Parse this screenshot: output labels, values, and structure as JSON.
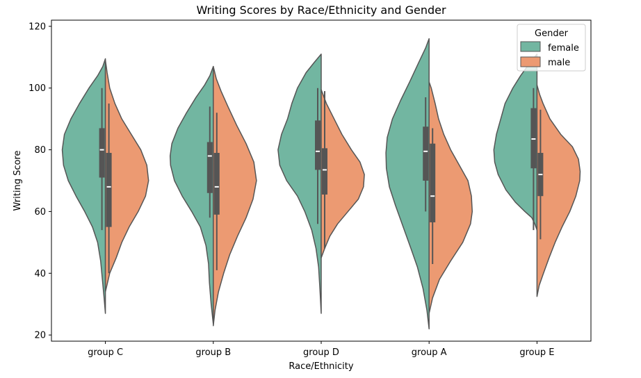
{
  "chart_data": {
    "type": "violin",
    "title": "Writing Scores by Race/Ethnicity and Gender",
    "xlabel": "Race/Ethnicity",
    "ylabel": "Writing Score",
    "ylim": [
      18,
      122
    ],
    "yticks": [
      20,
      40,
      60,
      80,
      100,
      120
    ],
    "categories": [
      "group C",
      "group B",
      "group D",
      "group A",
      "group E"
    ],
    "grid": false,
    "legend": {
      "title": "Gender",
      "placement": "top-right"
    },
    "series": [
      {
        "name": "female",
        "color": "#72b6a1",
        "groups": [
          {
            "range": [
              27,
              109.5
            ],
            "q1": 71,
            "median": 80,
            "q3": 87,
            "whisker_low": 54,
            "whisker_high": 100,
            "profile": [
              [
                27,
                0
              ],
              [
                32,
                0.03
              ],
              [
                38,
                0.07
              ],
              [
                44,
                0.11
              ],
              [
                50,
                0.18
              ],
              [
                55,
                0.3
              ],
              [
                60,
                0.48
              ],
              [
                65,
                0.68
              ],
              [
                70,
                0.86
              ],
              [
                75,
                0.97
              ],
              [
                80,
                1.0
              ],
              [
                85,
                0.95
              ],
              [
                90,
                0.8
              ],
              [
                95,
                0.6
              ],
              [
                100,
                0.38
              ],
              [
                104,
                0.18
              ],
              [
                107,
                0.06
              ],
              [
                109.5,
                0
              ]
            ]
          },
          {
            "range": [
              23.5,
              107
            ],
            "q1": 66,
            "median": 78,
            "q3": 82.5,
            "whisker_low": 58,
            "whisker_high": 94,
            "profile": [
              [
                23.5,
                0
              ],
              [
                30,
                0.05
              ],
              [
                37,
                0.09
              ],
              [
                43,
                0.11
              ],
              [
                49,
                0.17
              ],
              [
                55,
                0.3
              ],
              [
                60,
                0.5
              ],
              [
                65,
                0.72
              ],
              [
                70,
                0.9
              ],
              [
                75,
                0.99
              ],
              [
                78,
                1.0
              ],
              [
                82,
                0.96
              ],
              [
                87,
                0.82
              ],
              [
                92,
                0.62
              ],
              [
                97,
                0.4
              ],
              [
                101,
                0.2
              ],
              [
                104,
                0.08
              ],
              [
                107,
                0
              ]
            ]
          },
          {
            "range": [
              27,
              111
            ],
            "q1": 73.5,
            "median": 79.5,
            "q3": 89.5,
            "whisker_low": 56,
            "whisker_high": 100,
            "profile": [
              [
                27,
                0
              ],
              [
                35,
                0.03
              ],
              [
                42,
                0.06
              ],
              [
                48,
                0.12
              ],
              [
                54,
                0.22
              ],
              [
                60,
                0.38
              ],
              [
                65,
                0.55
              ],
              [
                70,
                0.8
              ],
              [
                75,
                0.96
              ],
              [
                80,
                1.0
              ],
              [
                85,
                0.92
              ],
              [
                90,
                0.78
              ],
              [
                95,
                0.68
              ],
              [
                100,
                0.55
              ],
              [
                105,
                0.35
              ],
              [
                108.5,
                0.15
              ],
              [
                111,
                0
              ]
            ]
          },
          {
            "range": [
              22,
              116
            ],
            "q1": 70,
            "median": 79.5,
            "q3": 87.5,
            "whisker_low": 60,
            "whisker_high": 97,
            "profile": [
              [
                22,
                0
              ],
              [
                28,
                0.05
              ],
              [
                35,
                0.14
              ],
              [
                42,
                0.27
              ],
              [
                48,
                0.42
              ],
              [
                55,
                0.6
              ],
              [
                62,
                0.78
              ],
              [
                68,
                0.92
              ],
              [
                74,
                0.99
              ],
              [
                79,
                1.0
              ],
              [
                84,
                0.97
              ],
              [
                90,
                0.85
              ],
              [
                96,
                0.66
              ],
              [
                102,
                0.45
              ],
              [
                108,
                0.25
              ],
              [
                113,
                0.08
              ],
              [
                116,
                0
              ]
            ]
          },
          {
            "range": [
              54,
              111
            ],
            "q1": 74,
            "median": 83.5,
            "q3": 93.5,
            "whisker_low": 54,
            "whisker_high": 100,
            "profile": [
              [
                54,
                0
              ],
              [
                56,
                0.05
              ],
              [
                58,
                0.12
              ],
              [
                60,
                0.28
              ],
              [
                63,
                0.5
              ],
              [
                67,
                0.72
              ],
              [
                72,
                0.9
              ],
              [
                76,
                0.98
              ],
              [
                80,
                1.0
              ],
              [
                85,
                0.94
              ],
              [
                90,
                0.84
              ],
              [
                95,
                0.74
              ],
              [
                100,
                0.56
              ],
              [
                104,
                0.38
              ],
              [
                107.5,
                0.2
              ],
              [
                111,
                0
              ]
            ]
          }
        ]
      },
      {
        "name": "male",
        "color": "#ec9a72",
        "groups": [
          {
            "range": [
              34,
              109
            ],
            "q1": 55,
            "median": 68,
            "q3": 79,
            "whisker_low": 40,
            "whisker_high": 95,
            "profile": [
              [
                34,
                0
              ],
              [
                40,
                0.1
              ],
              [
                45,
                0.25
              ],
              [
                50,
                0.38
              ],
              [
                55,
                0.55
              ],
              [
                60,
                0.76
              ],
              [
                65,
                0.93
              ],
              [
                70,
                1.0
              ],
              [
                75,
                0.96
              ],
              [
                80,
                0.82
              ],
              [
                85,
                0.6
              ],
              [
                90,
                0.38
              ],
              [
                95,
                0.22
              ],
              [
                100,
                0.1
              ],
              [
                105,
                0.04
              ],
              [
                109,
                0
              ]
            ]
          },
          {
            "range": [
              23,
              107
            ],
            "q1": 59,
            "median": 68,
            "q3": 79,
            "whisker_low": 41,
            "whisker_high": 92,
            "profile": [
              [
                23,
                0
              ],
              [
                28,
                0.04
              ],
              [
                34,
                0.12
              ],
              [
                40,
                0.24
              ],
              [
                46,
                0.38
              ],
              [
                52,
                0.56
              ],
              [
                58,
                0.76
              ],
              [
                64,
                0.92
              ],
              [
                70,
                1.0
              ],
              [
                76,
                0.94
              ],
              [
                82,
                0.76
              ],
              [
                88,
                0.54
              ],
              [
                94,
                0.34
              ],
              [
                99,
                0.18
              ],
              [
                103,
                0.07
              ],
              [
                107,
                0
              ]
            ]
          },
          {
            "range": [
              45,
              99.5
            ],
            "q1": 65.5,
            "median": 73.5,
            "q3": 80.5,
            "whisker_low": 48,
            "whisker_high": 99,
            "profile": [
              [
                45,
                0
              ],
              [
                48,
                0.08
              ],
              [
                52,
                0.2
              ],
              [
                56,
                0.38
              ],
              [
                60,
                0.62
              ],
              [
                64,
                0.86
              ],
              [
                68,
                0.98
              ],
              [
                72,
                1.0
              ],
              [
                76,
                0.9
              ],
              [
                80,
                0.7
              ],
              [
                85,
                0.48
              ],
              [
                90,
                0.3
              ],
              [
                95,
                0.12
              ],
              [
                99.5,
                0
              ]
            ]
          },
          {
            "range": [
              27,
              102
            ],
            "q1": 56.5,
            "median": 65,
            "q3": 82,
            "whisker_low": 43,
            "whisker_high": 87,
            "profile": [
              [
                27,
                0
              ],
              [
                32,
                0.08
              ],
              [
                38,
                0.24
              ],
              [
                44,
                0.5
              ],
              [
                50,
                0.78
              ],
              [
                56,
                0.96
              ],
              [
                60,
                1.0
              ],
              [
                65,
                0.98
              ],
              [
                70,
                0.9
              ],
              [
                75,
                0.7
              ],
              [
                80,
                0.5
              ],
              [
                85,
                0.34
              ],
              [
                90,
                0.22
              ],
              [
                95,
                0.14
              ],
              [
                100,
                0.05
              ],
              [
                102,
                0
              ]
            ]
          },
          {
            "range": [
              32.5,
              101
            ],
            "q1": 65,
            "median": 72,
            "q3": 79,
            "whisker_low": 51,
            "whisker_high": 93,
            "profile": [
              [
                32.5,
                0
              ],
              [
                36,
                0.05
              ],
              [
                40,
                0.15
              ],
              [
                45,
                0.28
              ],
              [
                50,
                0.42
              ],
              [
                55,
                0.58
              ],
              [
                60,
                0.76
              ],
              [
                65,
                0.9
              ],
              [
                70,
                0.99
              ],
              [
                73,
                1.0
              ],
              [
                77,
                0.96
              ],
              [
                81,
                0.82
              ],
              [
                85,
                0.55
              ],
              [
                90,
                0.3
              ],
              [
                95,
                0.14
              ],
              [
                98,
                0.06
              ],
              [
                101,
                0
              ]
            ]
          }
        ]
      }
    ]
  }
}
